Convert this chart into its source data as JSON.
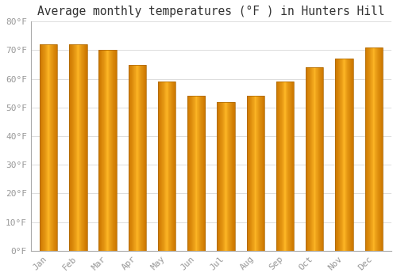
{
  "title": "Average monthly temperatures (°F ) in Hunters Hill",
  "months": [
    "Jan",
    "Feb",
    "Mar",
    "Apr",
    "May",
    "Jun",
    "Jul",
    "Aug",
    "Sep",
    "Oct",
    "Nov",
    "Dec"
  ],
  "values": [
    72,
    72,
    70,
    65,
    59,
    54,
    52,
    54,
    59,
    64,
    67,
    71
  ],
  "bar_color_left": "#E08000",
  "bar_color_center": "#FFB300",
  "bar_color_right": "#E08000",
  "background_color": "#FFFFFF",
  "grid_color": "#DDDDDD",
  "ylim": [
    0,
    80
  ],
  "yticks": [
    0,
    10,
    20,
    30,
    40,
    50,
    60,
    70,
    80
  ],
  "ytick_labels": [
    "0°F",
    "10°F",
    "20°F",
    "30°F",
    "40°F",
    "50°F",
    "60°F",
    "70°F",
    "80°F"
  ],
  "tick_color": "#999999",
  "title_fontsize": 10.5,
  "tick_fontsize": 8,
  "bar_width": 0.6
}
